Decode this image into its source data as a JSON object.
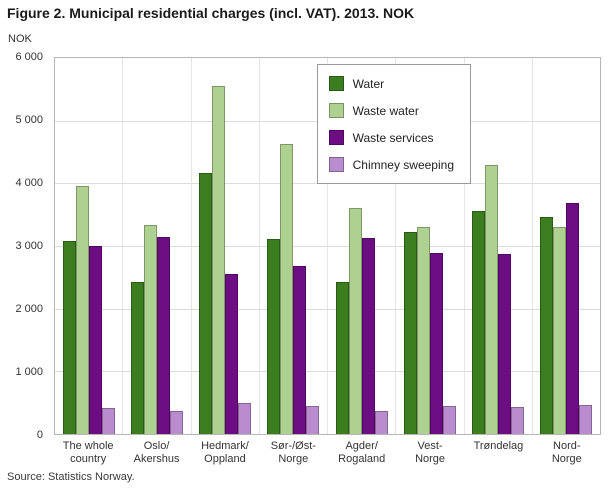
{
  "title": "Figure 2. Municipal residential charges (incl. VAT). 2013. NOK",
  "source": "Source: Statistics Norway.",
  "chart_data": {
    "type": "bar",
    "title": "Figure 2. Municipal residential charges (incl. VAT). 2013. NOK",
    "xlabel": "",
    "ylabel": "NOK",
    "ylim": [
      0,
      6000
    ],
    "grid": true,
    "legend_position": "top-right-inside",
    "yticks": [
      {
        "value": 6000,
        "label": "6 000"
      },
      {
        "value": 5000,
        "label": "5 000"
      },
      {
        "value": 4000,
        "label": "4 000"
      },
      {
        "value": 3000,
        "label": "3 000"
      },
      {
        "value": 2000,
        "label": "2 000"
      },
      {
        "value": 1000,
        "label": "1 000"
      },
      {
        "value": 0,
        "label": "0"
      }
    ],
    "categories": [
      "The whole\ncountry",
      "Oslo/\nAkershus",
      "Hedmark/\nOppland",
      "Sør-/Øst-\nNorge",
      "Agder/\nRogaland",
      "Vest-\nNorge",
      "Trøndelag",
      "Nord-\nNorge"
    ],
    "series": [
      {
        "name": "Water",
        "color": "#3c7d1f",
        "values": [
          3080,
          2420,
          4170,
          3110,
          2420,
          3230,
          3560,
          3470
        ]
      },
      {
        "name": "Waste water",
        "color": "#aed191",
        "values": [
          3960,
          3330,
          5560,
          4630,
          3610,
          3300,
          4300,
          3310
        ]
      },
      {
        "name": "Waste services",
        "color": "#6c0d83",
        "values": [
          3000,
          3140,
          2550,
          2680,
          3130,
          2890,
          2870,
          3690
        ]
      },
      {
        "name": "Chimney sweeping",
        "color": "#b98ccd",
        "values": [
          420,
          360,
          500,
          440,
          370,
          440,
          430,
          460
        ]
      }
    ]
  }
}
